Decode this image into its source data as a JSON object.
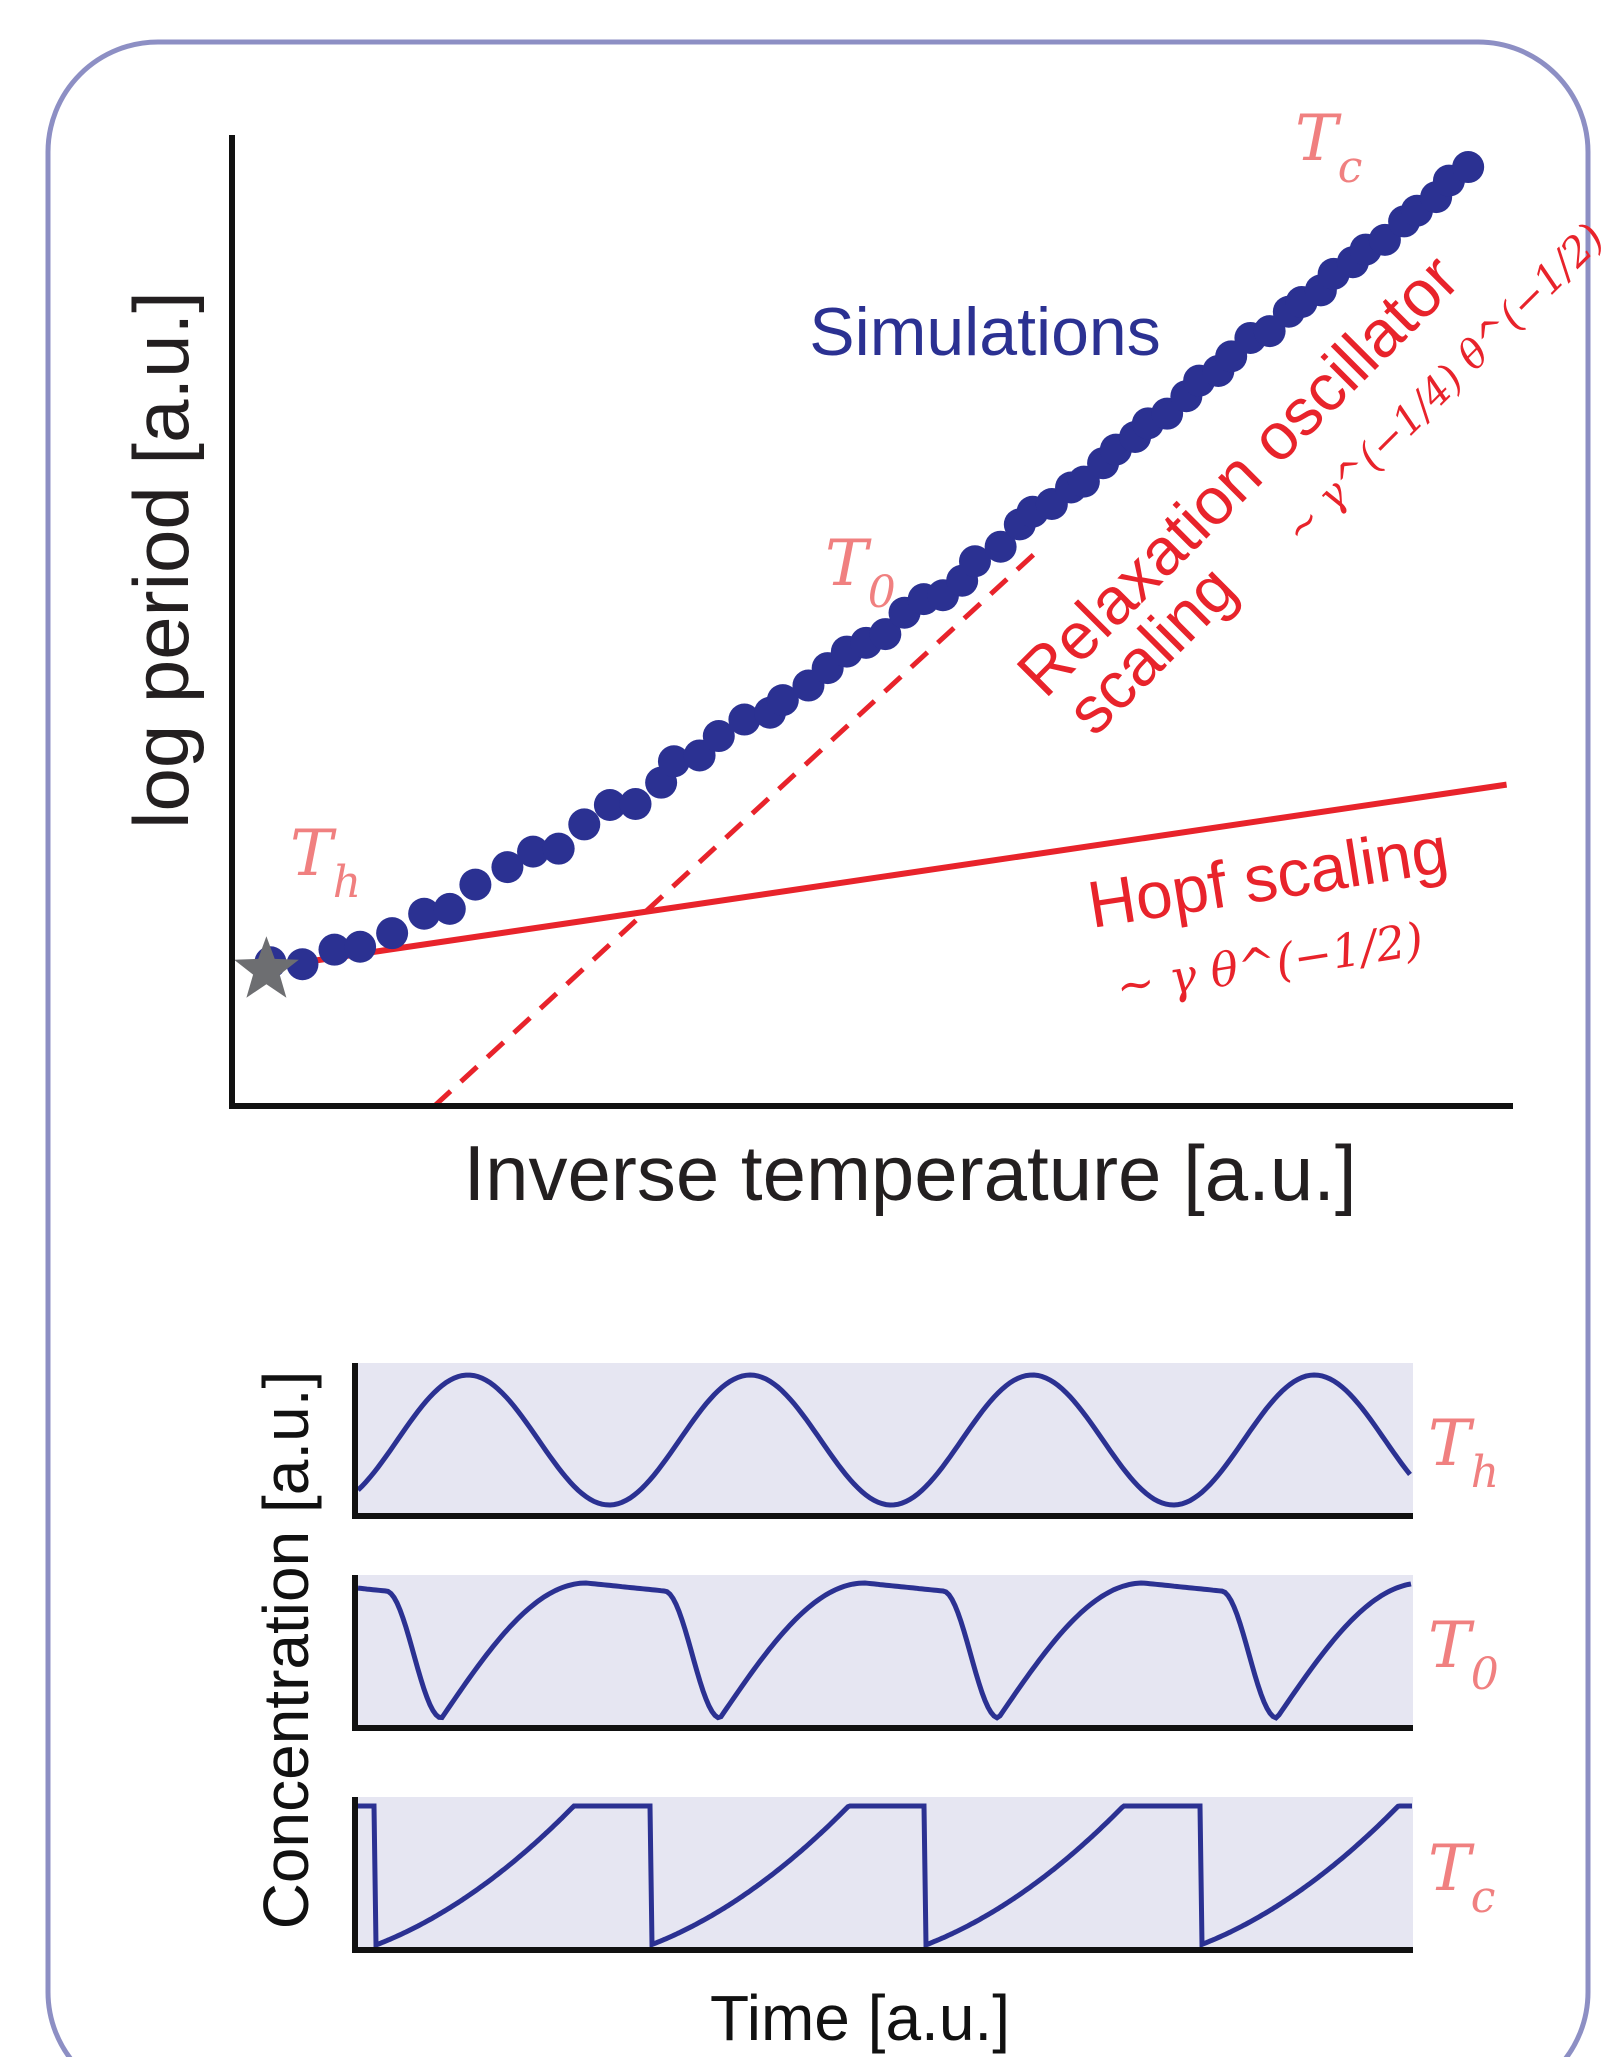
{
  "chart_data": [
    {
      "type": "scatter",
      "xlabel": "Inverse temperature [a.u.]",
      "ylabel": "log period [a.u.]",
      "xlim": [
        0,
        1
      ],
      "ylim": [
        0,
        1
      ],
      "annotations": {
        "simulations": "Simulations",
        "relax_line1": "Relaxation oscillator",
        "relax_line2": "scaling",
        "relax_formula": "∼ γ^(−1/4) θ^(−1/2)",
        "hopf": "Hopf scaling",
        "hopf_formula": "∼ γ θ^(−1/2)",
        "Th": "Th",
        "T0": "T0",
        "Tc": "Tc"
      },
      "series": [
        {
          "name": "Simulations",
          "style": "markers",
          "color": "#2b3192",
          "x": [
            0.03,
            0.055,
            0.08,
            0.1,
            0.125,
            0.15,
            0.17,
            0.19,
            0.215,
            0.235,
            0.255,
            0.275,
            0.295,
            0.315,
            0.335,
            0.345,
            0.365,
            0.38,
            0.4,
            0.42,
            0.43,
            0.45,
            0.465,
            0.48,
            0.495,
            0.51,
            0.525,
            0.54,
            0.555,
            0.57,
            0.58,
            0.6,
            0.615,
            0.625,
            0.64,
            0.655,
            0.665,
            0.68,
            0.69,
            0.705,
            0.715,
            0.73,
            0.745,
            0.755,
            0.77,
            0.78,
            0.795,
            0.81,
            0.825,
            0.835,
            0.85,
            0.86,
            0.875,
            0.885,
            0.9,
            0.915,
            0.925,
            0.94,
            0.95,
            0.965
          ],
          "y": [
            0.148,
            0.146,
            0.161,
            0.164,
            0.178,
            0.198,
            0.203,
            0.228,
            0.246,
            0.262,
            0.265,
            0.29,
            0.31,
            0.311,
            0.333,
            0.355,
            0.361,
            0.381,
            0.398,
            0.405,
            0.418,
            0.433,
            0.451,
            0.468,
            0.477,
            0.486,
            0.508,
            0.522,
            0.526,
            0.541,
            0.561,
            0.576,
            0.599,
            0.612,
            0.62,
            0.637,
            0.643,
            0.662,
            0.676,
            0.689,
            0.703,
            0.713,
            0.731,
            0.747,
            0.757,
            0.772,
            0.791,
            0.798,
            0.818,
            0.828,
            0.84,
            0.857,
            0.869,
            0.882,
            0.892,
            0.911,
            0.922,
            0.936,
            0.953,
            0.967
          ]
        },
        {
          "name": "Hopf scaling",
          "style": "solid line",
          "color": "#e8232b",
          "x": [
            0.03,
            0.995
          ],
          "y": [
            0.143,
            0.331
          ]
        },
        {
          "name": "Relaxation oscillator scaling",
          "style": "dashed line",
          "color": "#e8232b",
          "x": [
            0.158,
            0.63
          ],
          "y": [
            0.0,
            0.573
          ]
        },
        {
          "name": "Th marker",
          "style": "star",
          "color": "#6d6e71",
          "x": [
            0.03
          ],
          "y": [
            0.146
          ]
        }
      ]
    },
    {
      "type": "line",
      "xlabel": "Time [a.u.]",
      "ylabel": "Concentration [a.u.]",
      "panels": [
        {
          "label": "Th",
          "waveform": "sinusoidal",
          "periods_shown": 3.75,
          "color": "#2b3192"
        },
        {
          "label": "T0",
          "waveform": "plateau-sawtooth",
          "periods_shown": 3.8,
          "color": "#2b3192"
        },
        {
          "label": "Tc",
          "waveform": "relaxation",
          "periods_shown": 3.85,
          "color": "#2b3192"
        }
      ]
    }
  ],
  "colors": {
    "frame": "#8d8fc4",
    "markers": "#2b3192",
    "theory": "#e8232b",
    "temperature_labels": "#f08080",
    "panel_fill": "#e6e6f2",
    "axis": "#111111",
    "star": "#6d6e71"
  }
}
